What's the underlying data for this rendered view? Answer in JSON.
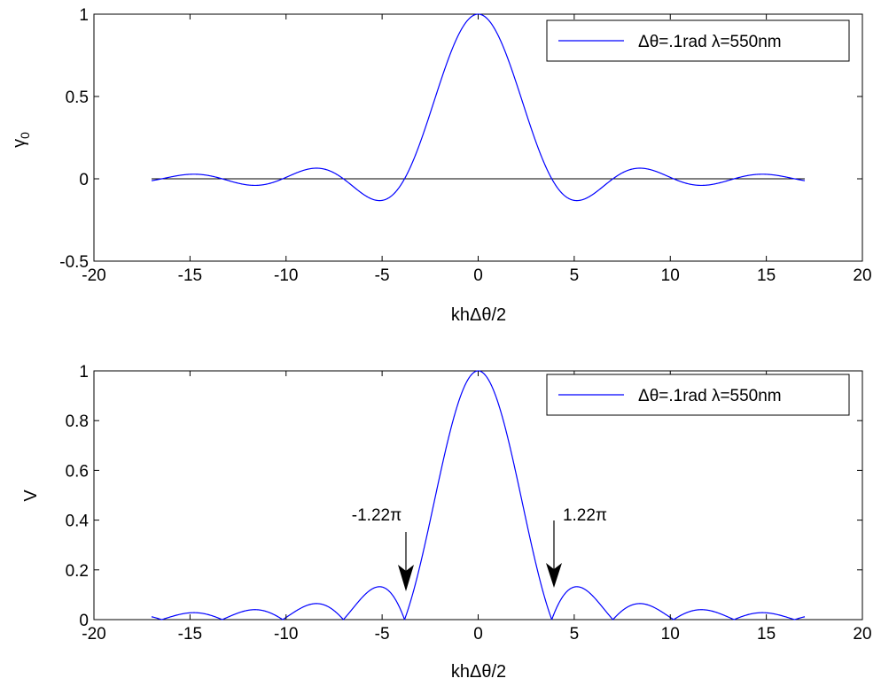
{
  "chart_data": [
    {
      "type": "line",
      "xlabel": "khΔθ/2",
      "ylabel": "γ0",
      "ylabel_main": "γ",
      "ylabel_sub": "0",
      "xlim": [
        -20,
        20
      ],
      "ylim": [
        -0.5,
        1
      ],
      "xticks": [
        "-20",
        "-15",
        "-10",
        "-5",
        "0",
        "5",
        "10",
        "15",
        "20"
      ],
      "xtick_values": [
        -20,
        -15,
        -10,
        -5,
        0,
        5,
        10,
        15,
        20
      ],
      "yticks": [
        "-0.5",
        "0",
        "0.5",
        "1"
      ],
      "ytick_values": [
        -0.5,
        0,
        0.5,
        1
      ],
      "function": "2*J1(x)/x",
      "x_range": [
        -17,
        17
      ],
      "zero_line": true,
      "grid": false,
      "legend_position": "top-right",
      "series": [
        {
          "name": "Δθ=.1rad λ=550nm",
          "color": "#0000ff"
        }
      ],
      "zero_line_color": "#000000"
    },
    {
      "type": "line",
      "xlabel": "khΔθ/2",
      "ylabel": "V",
      "xlim": [
        -20,
        20
      ],
      "ylim": [
        0,
        1
      ],
      "xticks": [
        "-20",
        "-15",
        "-10",
        "-5",
        "0",
        "5",
        "10",
        "15",
        "20"
      ],
      "xtick_values": [
        -20,
        -15,
        -10,
        -5,
        0,
        5,
        10,
        15,
        20
      ],
      "yticks": [
        "0",
        "0.2",
        "0.4",
        "0.6",
        "0.8",
        "1"
      ],
      "ytick_values": [
        0,
        0.2,
        0.4,
        0.6,
        0.8,
        1
      ],
      "function": "|2*J1(x)/x|",
      "x_range": [
        -17,
        17
      ],
      "grid": false,
      "legend_position": "top-right",
      "series": [
        {
          "name": "Δθ=.1rad λ=550nm",
          "color": "#0000ff"
        }
      ],
      "annotations": [
        {
          "text": "-1.22π",
          "x": -3.83,
          "y": 0
        },
        {
          "text": "1.22π",
          "x": 3.83,
          "y": 0
        }
      ]
    }
  ]
}
